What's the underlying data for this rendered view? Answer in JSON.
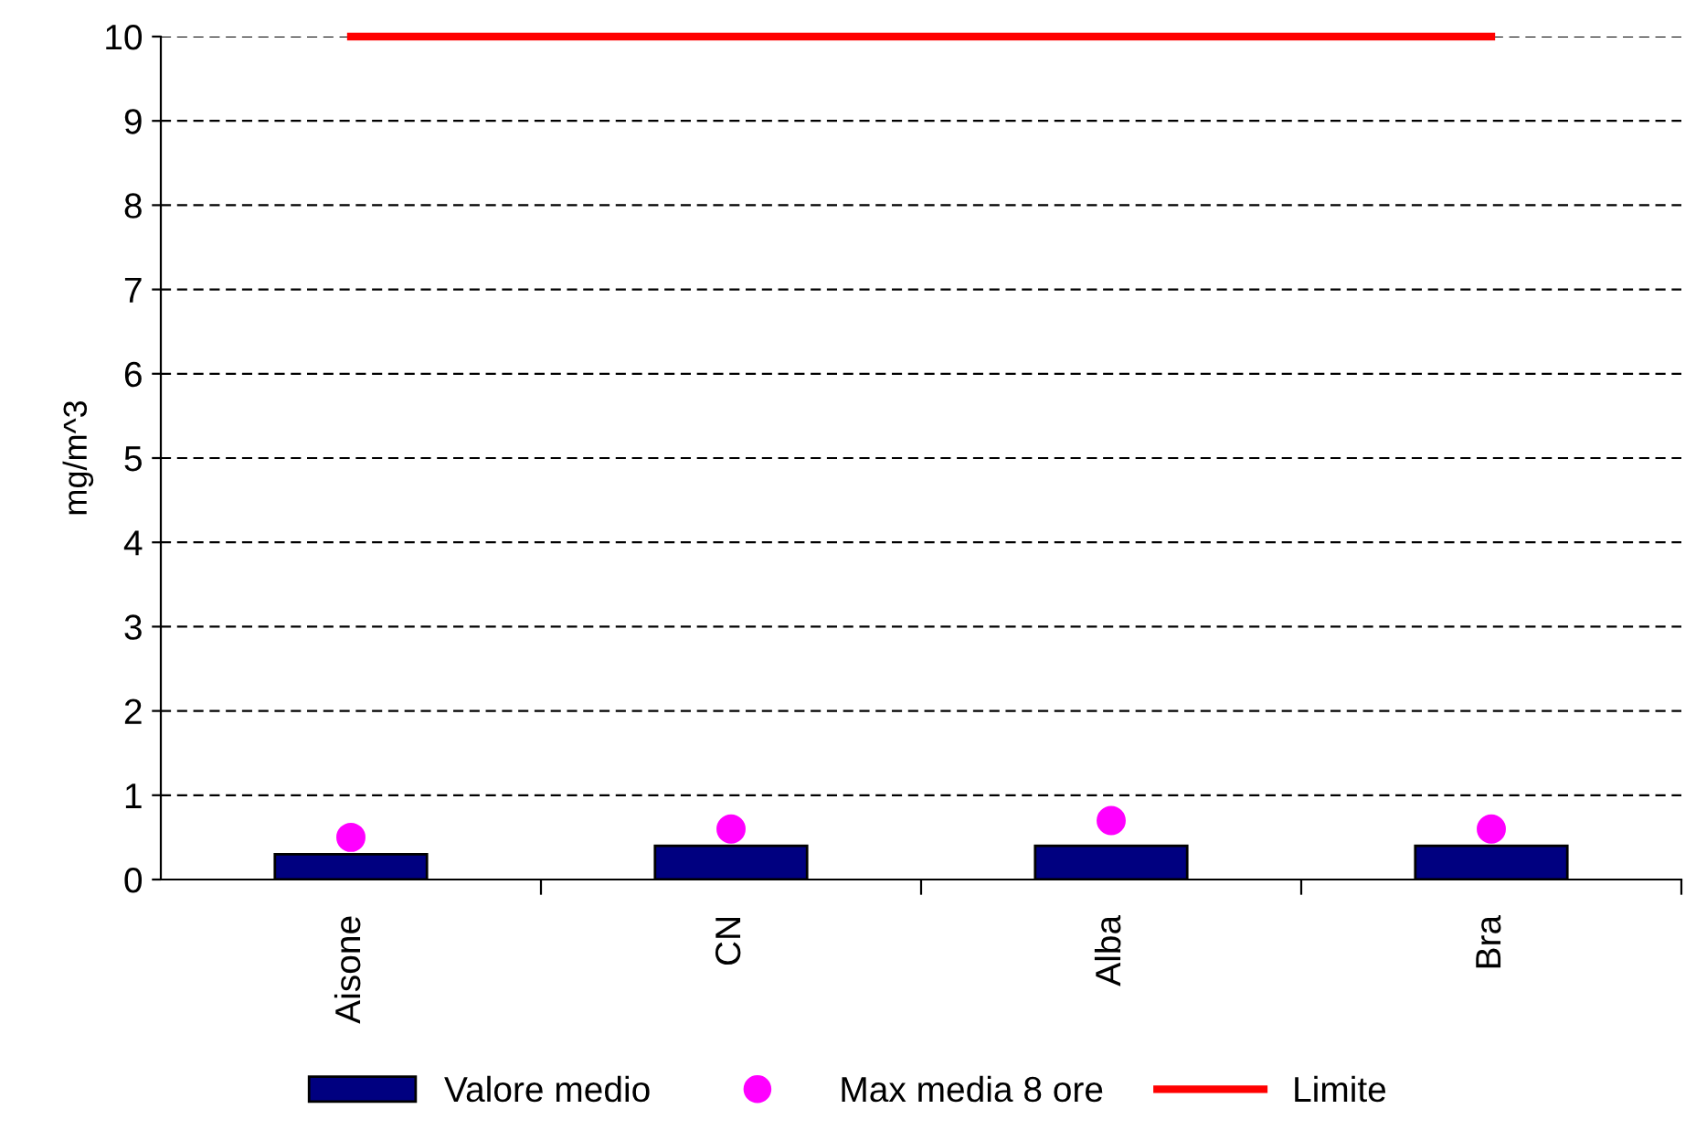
{
  "chart_data": {
    "type": "bar",
    "ylabel": "mg/m^3",
    "categories": [
      "Aisone",
      "CN",
      "Alba",
      "Bra"
    ],
    "series": [
      {
        "name": "Valore medio",
        "color": "#000080",
        "values": [
          0.3,
          0.4,
          0.4,
          0.4
        ]
      },
      {
        "name": "Max media 8 ore",
        "type": "scatter",
        "marker": "circle",
        "color": "#ff00ff",
        "values": [
          0.5,
          0.6,
          0.7,
          0.6
        ]
      },
      {
        "name": "Limite",
        "type": "line",
        "color": "#ff0000",
        "values": [
          10,
          10,
          10,
          10
        ]
      }
    ],
    "ylim": [
      0,
      10
    ],
    "yticks": [
      0,
      1,
      2,
      3,
      4,
      5,
      6,
      7,
      8,
      9,
      10
    ],
    "grid": "y",
    "legend": "bottom",
    "line_style": "solid"
  }
}
